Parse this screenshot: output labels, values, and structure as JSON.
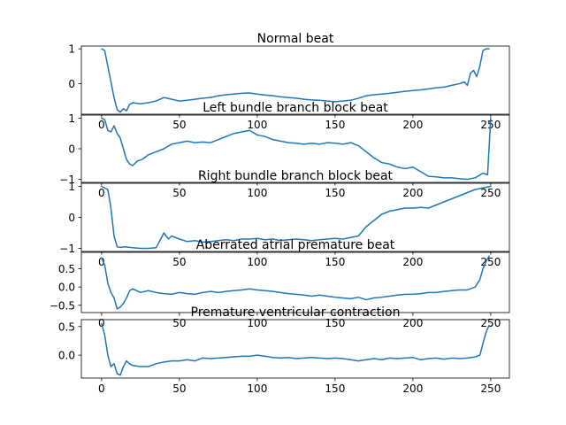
{
  "figure": {
    "background": "#ffffff",
    "line_color": "#1f77b4"
  },
  "chart_data": [
    {
      "type": "line",
      "title": "Normal beat",
      "xlabel": "",
      "ylabel": "",
      "xlim": [
        -13,
        262
      ],
      "ylim": [
        -0.88,
        1.08
      ],
      "xticks": [
        0,
        50,
        100,
        150,
        200,
        250
      ],
      "xtick_labels": [
        "0",
        "50",
        "100",
        "150",
        "200",
        "250"
      ],
      "yticks": [
        1,
        0
      ],
      "ytick_labels": [
        "1",
        "0"
      ],
      "grid": false,
      "series": [
        {
          "color": "#1f77b4",
          "x": [
            0,
            2,
            4,
            6,
            8,
            10,
            12,
            14,
            16,
            18,
            20,
            25,
            30,
            35,
            40,
            45,
            50,
            55,
            60,
            65,
            70,
            75,
            80,
            85,
            90,
            95,
            100,
            105,
            110,
            115,
            120,
            125,
            130,
            135,
            140,
            145,
            150,
            155,
            160,
            165,
            170,
            175,
            180,
            185,
            190,
            195,
            200,
            205,
            210,
            215,
            220,
            225,
            230,
            233,
            235,
            237,
            239,
            241,
            243,
            245,
            247,
            249
          ],
          "y": [
            1.0,
            0.95,
            0.5,
            0.05,
            -0.4,
            -0.75,
            -0.82,
            -0.72,
            -0.78,
            -0.6,
            -0.55,
            -0.58,
            -0.55,
            -0.5,
            -0.4,
            -0.45,
            -0.5,
            -0.48,
            -0.45,
            -0.42,
            -0.4,
            -0.35,
            -0.32,
            -0.3,
            -0.28,
            -0.27,
            -0.3,
            -0.33,
            -0.35,
            -0.38,
            -0.4,
            -0.42,
            -0.45,
            -0.47,
            -0.48,
            -0.5,
            -0.52,
            -0.5,
            -0.48,
            -0.42,
            -0.35,
            -0.32,
            -0.3,
            -0.28,
            -0.25,
            -0.22,
            -0.2,
            -0.18,
            -0.15,
            -0.12,
            -0.1,
            -0.05,
            0.0,
            0.05,
            -0.05,
            0.3,
            0.38,
            0.2,
            0.5,
            0.95,
            1.0,
            1.0
          ]
        }
      ]
    },
    {
      "type": "line",
      "title": "Left bundle branch block beat",
      "xlabel": "",
      "ylabel": "",
      "xlim": [
        -13,
        262
      ],
      "ylim": [
        -1.1,
        1.1
      ],
      "xticks": [
        0,
        50,
        100,
        150,
        200,
        250
      ],
      "xtick_labels": [
        "0",
        "50",
        "100",
        "150",
        "200",
        "250"
      ],
      "yticks": [
        1,
        0,
        -1
      ],
      "ytick_labels": [
        "1",
        "0",
        "−1"
      ],
      "grid": false,
      "series": [
        {
          "color": "#1f77b4",
          "x": [
            0,
            2,
            4,
            6,
            8,
            10,
            12,
            14,
            16,
            18,
            20,
            23,
            26,
            30,
            35,
            40,
            45,
            50,
            55,
            60,
            65,
            70,
            75,
            80,
            85,
            90,
            95,
            100,
            105,
            110,
            115,
            120,
            125,
            130,
            135,
            140,
            145,
            150,
            155,
            160,
            165,
            170,
            175,
            180,
            185,
            190,
            195,
            200,
            205,
            210,
            215,
            220,
            225,
            230,
            235,
            240,
            245,
            248,
            250
          ],
          "y": [
            1.0,
            0.95,
            0.6,
            0.55,
            0.75,
            0.5,
            0.35,
            0.0,
            -0.35,
            -0.5,
            -0.55,
            -0.4,
            -0.35,
            -0.2,
            -0.1,
            0.0,
            0.15,
            0.2,
            0.25,
            0.2,
            0.22,
            0.2,
            0.3,
            0.4,
            0.5,
            0.55,
            0.6,
            0.45,
            0.4,
            0.3,
            0.25,
            0.2,
            0.18,
            0.15,
            0.18,
            0.15,
            0.2,
            0.18,
            0.15,
            0.2,
            0.1,
            -0.1,
            -0.3,
            -0.45,
            -0.5,
            -0.6,
            -0.65,
            -0.6,
            -0.75,
            -0.9,
            -0.92,
            -0.95,
            -0.95,
            -0.98,
            -1.0,
            -0.95,
            -0.8,
            -0.85,
            1.0
          ]
        }
      ]
    },
    {
      "type": "line",
      "title": "Right bundle branch block beat",
      "xlabel": "",
      "ylabel": "",
      "xlim": [
        -13,
        262
      ],
      "ylim": [
        -1.1,
        1.1
      ],
      "xticks": [
        0,
        50,
        100,
        150,
        200,
        250
      ],
      "xtick_labels": [
        "0",
        "50",
        "100",
        "150",
        "200",
        "250"
      ],
      "yticks": [
        1,
        0,
        -1
      ],
      "ytick_labels": [
        "1",
        "0",
        "−1"
      ],
      "grid": false,
      "series": [
        {
          "color": "#1f77b4",
          "x": [
            0,
            2,
            4,
            6,
            8,
            10,
            12,
            15,
            20,
            25,
            30,
            35,
            38,
            40,
            43,
            45,
            50,
            55,
            60,
            65,
            70,
            75,
            80,
            85,
            90,
            95,
            100,
            105,
            110,
            115,
            120,
            125,
            130,
            135,
            140,
            145,
            150,
            155,
            160,
            165,
            170,
            175,
            180,
            185,
            190,
            195,
            200,
            205,
            210,
            215,
            220,
            225,
            230,
            235,
            240,
            245,
            250
          ],
          "y": [
            1.0,
            0.95,
            0.9,
            0.3,
            -0.6,
            -0.95,
            -0.97,
            -0.95,
            -0.98,
            -1.0,
            -1.0,
            -0.98,
            -0.7,
            -0.5,
            -0.7,
            -0.6,
            -0.7,
            -0.78,
            -0.75,
            -0.8,
            -0.78,
            -0.75,
            -0.72,
            -0.75,
            -0.7,
            -0.7,
            -0.68,
            -0.72,
            -0.7,
            -0.75,
            -0.72,
            -0.7,
            -0.72,
            -0.75,
            -0.72,
            -0.7,
            -0.68,
            -0.7,
            -0.65,
            -0.6,
            -0.3,
            -0.1,
            0.1,
            0.2,
            0.25,
            0.3,
            0.3,
            0.32,
            0.3,
            0.4,
            0.5,
            0.6,
            0.7,
            0.8,
            0.9,
            0.95,
            1.0
          ]
        }
      ]
    },
    {
      "type": "line",
      "title": "Aberrated atrial premature beat",
      "xlabel": "",
      "ylabel": "",
      "xlim": [
        -13,
        262
      ],
      "ylim": [
        -0.7,
        0.95
      ],
      "xticks": [
        0,
        50,
        100,
        150,
        200,
        250
      ],
      "xtick_labels": [
        "0",
        "50",
        "100",
        "150",
        "200",
        "250"
      ],
      "yticks": [
        0.5,
        0.0,
        -0.5
      ],
      "ytick_labels": [
        "0.5",
        "0.0",
        "−0.5"
      ],
      "grid": false,
      "series": [
        {
          "color": "#1f77b4",
          "x": [
            0,
            2,
            4,
            6,
            8,
            10,
            12,
            14,
            16,
            18,
            20,
            25,
            30,
            35,
            40,
            45,
            50,
            55,
            60,
            65,
            70,
            75,
            80,
            85,
            90,
            95,
            100,
            105,
            110,
            115,
            120,
            125,
            130,
            135,
            140,
            145,
            150,
            155,
            160,
            165,
            170,
            175,
            180,
            185,
            190,
            195,
            200,
            205,
            210,
            215,
            220,
            225,
            230,
            235,
            240,
            243,
            245,
            247,
            249
          ],
          "y": [
            0.8,
            0.6,
            0.1,
            -0.15,
            -0.3,
            -0.6,
            -0.55,
            -0.45,
            -0.3,
            -0.1,
            -0.05,
            -0.15,
            -0.1,
            -0.15,
            -0.18,
            -0.2,
            -0.15,
            -0.18,
            -0.2,
            -0.15,
            -0.12,
            -0.15,
            -0.12,
            -0.1,
            -0.08,
            -0.05,
            -0.08,
            -0.1,
            -0.12,
            -0.15,
            -0.18,
            -0.2,
            -0.22,
            -0.25,
            -0.22,
            -0.25,
            -0.28,
            -0.3,
            -0.32,
            -0.28,
            -0.35,
            -0.3,
            -0.28,
            -0.25,
            -0.22,
            -0.2,
            -0.2,
            -0.18,
            -0.15,
            -0.15,
            -0.12,
            -0.1,
            -0.08,
            -0.08,
            0.0,
            0.2,
            0.5,
            0.7,
            0.85
          ]
        }
      ]
    },
    {
      "type": "line",
      "title": "Premature ventricular contraction",
      "xlabel": "",
      "ylabel": "",
      "xlim": [
        -13,
        262
      ],
      "ylim": [
        -0.4,
        0.62
      ],
      "xticks": [
        0,
        50,
        100,
        150,
        200,
        250
      ],
      "xtick_labels": [
        "0",
        "50",
        "100",
        "150",
        "200",
        "250"
      ],
      "yticks": [
        0.5,
        0.0
      ],
      "ytick_labels": [
        "0.5",
        "0.0"
      ],
      "grid": false,
      "series": [
        {
          "color": "#1f77b4",
          "x": [
            0,
            2,
            4,
            6,
            8,
            10,
            12,
            14,
            16,
            18,
            20,
            25,
            30,
            35,
            40,
            45,
            50,
            55,
            60,
            65,
            70,
            75,
            80,
            85,
            90,
            95,
            100,
            105,
            110,
            115,
            120,
            125,
            130,
            135,
            140,
            145,
            150,
            155,
            160,
            165,
            170,
            175,
            180,
            185,
            190,
            195,
            200,
            205,
            210,
            215,
            220,
            225,
            230,
            235,
            240,
            243,
            245,
            247,
            249
          ],
          "y": [
            0.55,
            0.35,
            0.0,
            -0.2,
            -0.15,
            -0.32,
            -0.35,
            -0.2,
            -0.1,
            -0.15,
            -0.18,
            -0.2,
            -0.2,
            -0.15,
            -0.12,
            -0.1,
            -0.1,
            -0.08,
            -0.1,
            -0.05,
            -0.06,
            -0.05,
            -0.04,
            -0.03,
            -0.02,
            -0.02,
            0.0,
            -0.02,
            -0.04,
            -0.05,
            -0.04,
            -0.06,
            -0.05,
            -0.04,
            -0.05,
            -0.06,
            -0.05,
            -0.06,
            -0.08,
            -0.1,
            -0.08,
            -0.06,
            -0.08,
            -0.05,
            -0.06,
            -0.05,
            -0.04,
            -0.08,
            -0.06,
            -0.05,
            -0.07,
            -0.05,
            -0.06,
            -0.05,
            -0.03,
            0.0,
            0.2,
            0.4,
            0.52
          ]
        }
      ]
    }
  ]
}
